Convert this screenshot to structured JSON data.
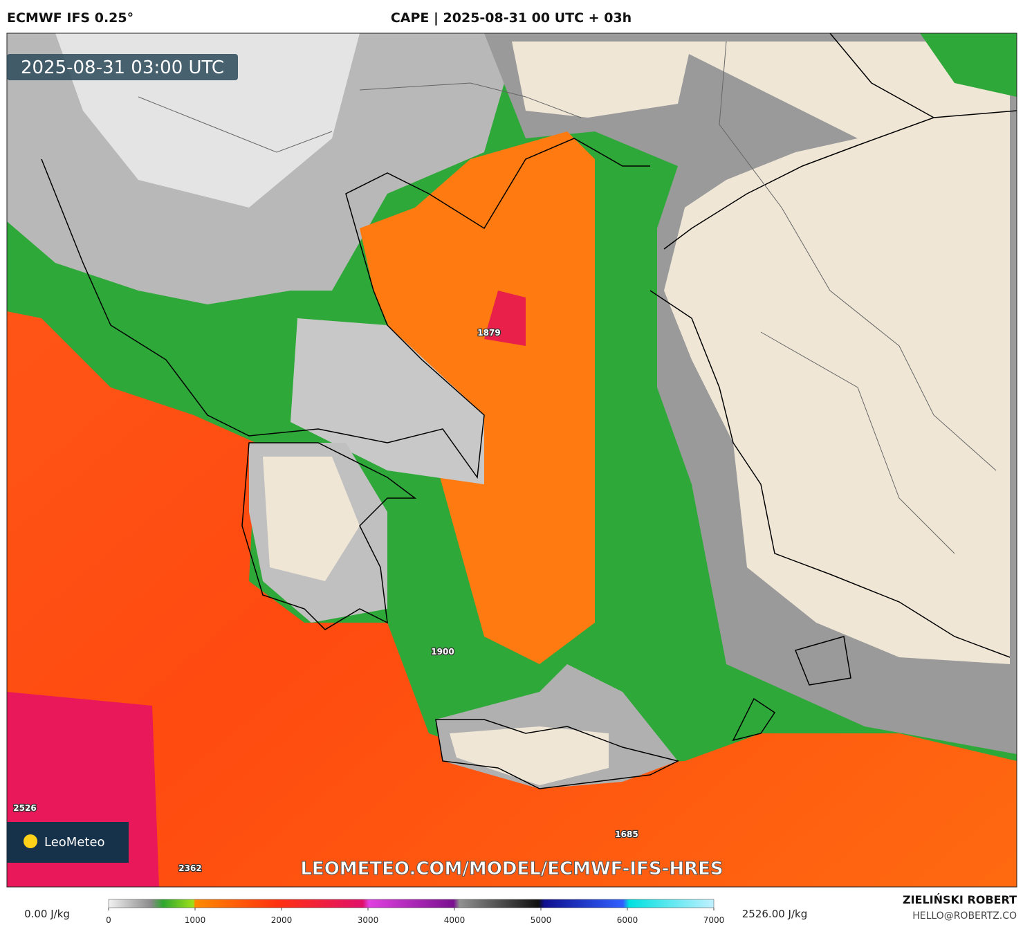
{
  "header": {
    "left": "ECMWF IFS 0.25°",
    "center": "CAPE | 2025-08-31 00 UTC + 03h"
  },
  "map": {
    "timestamp": "2025-08-31 03:00 UTC",
    "point_labels": [
      "1879",
      "1900",
      "2526",
      "1685",
      "2362"
    ],
    "watermark": "LEOMETEO.COM/MODEL/ECMWF-IFS-HRES",
    "logo": "LeoMeteo"
  },
  "colorbar": {
    "min_label": "0.00 J/kg",
    "max_label": "2526.00 J/kg",
    "ticks": [
      "0",
      "1000",
      "2000",
      "3000",
      "4000",
      "5000",
      "6000",
      "7000"
    ]
  },
  "footer": {
    "author": "ZIELIŃSKI ROBERT",
    "contact": "HELLO@ROBERTZ.CO"
  }
}
